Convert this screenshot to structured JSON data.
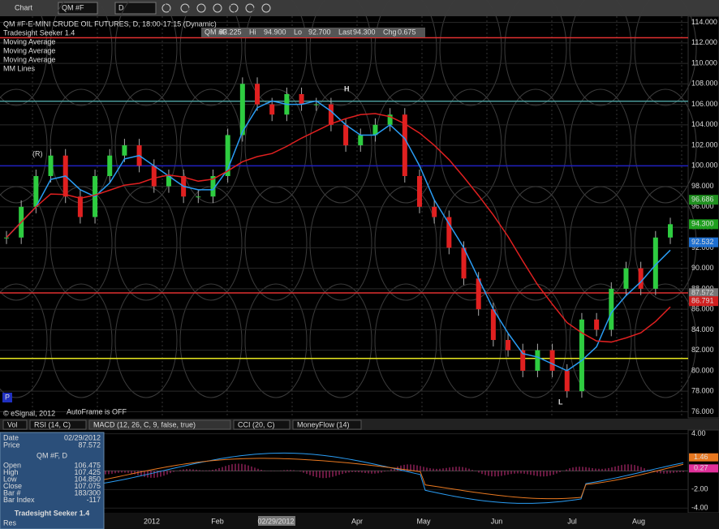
{
  "toolbar": {
    "title": "Chart",
    "symbol": "QM #F",
    "interval": "D"
  },
  "legend": {
    "header": "QM #F-E-MINI CRUDE OIL FUTURES, D, 18:00-17:15 (Dynamic)",
    "items": [
      "Tradesight Seeker 1.4",
      "Moving Average",
      "Moving Average",
      "Moving Average",
      "MM Lines"
    ]
  },
  "quote": [
    {
      "label": "QM #F",
      "value": "93.225"
    },
    {
      "label": "Hi",
      "value": "94.900"
    },
    {
      "label": "Lo",
      "value": "92.700"
    },
    {
      "label": "Last",
      "value": "94.300"
    },
    {
      "label": "Chg",
      "value": "0.675"
    }
  ],
  "annotations": {
    "high": "H",
    "low": "L",
    "reversal": "(R)",
    "autoframe": "AutoFrame is OFF",
    "copyright": "© eSignal, 2012",
    "p": "P"
  },
  "price_chart": {
    "ylim": [
      75.4,
      114.6
    ],
    "yticks": [
      {
        "value": 114,
        "label": "114.000"
      },
      {
        "value": 112,
        "label": "112.000"
      },
      {
        "value": 110,
        "label": "110.000"
      },
      {
        "value": 108,
        "label": "108.000"
      },
      {
        "value": 106,
        "label": "106.000"
      },
      {
        "value": 104,
        "label": "104.000"
      },
      {
        "value": 102,
        "label": "102.000"
      },
      {
        "value": 100,
        "label": "100.000"
      },
      {
        "value": 98,
        "label": "98.000"
      },
      {
        "value": 96,
        "label": "96.000"
      },
      {
        "value": 94,
        "label": "94.000"
      },
      {
        "value": 92,
        "label": "92.000"
      },
      {
        "value": 90,
        "label": "90.000"
      },
      {
        "value": 88,
        "label": "88.000"
      },
      {
        "value": 86,
        "label": "86.000"
      },
      {
        "value": 84,
        "label": "84.000"
      },
      {
        "value": 82,
        "label": "82.000"
      },
      {
        "value": 80,
        "label": "80.000"
      },
      {
        "value": 78,
        "label": "78.000"
      },
      {
        "value": 76,
        "label": "76.000"
      }
    ],
    "tags": [
      {
        "value": 96.686,
        "label": "96.686",
        "color": "#1f8f1f"
      },
      {
        "value": 94.3,
        "label": "94.300",
        "color": "#1fa01f"
      },
      {
        "value": 92.532,
        "label": "92.532",
        "color": "#1e6fd0"
      },
      {
        "value": 87.572,
        "label": "87.572",
        "color": "#777777"
      },
      {
        "value": 86.791,
        "label": "86.791",
        "color": "#d02020"
      }
    ],
    "levels": [
      {
        "value": 112.5,
        "color": "#e03030"
      },
      {
        "value": 106.3,
        "color": "#4a9a9a"
      },
      {
        "value": 100,
        "color": "#2020c0"
      },
      {
        "value": 87.6,
        "color": "#e03030"
      },
      {
        "value": 81.2,
        "color": "#e8e820"
      }
    ],
    "closes": [
      93,
      96,
      99,
      101,
      97,
      95,
      99,
      101,
      102,
      100,
      98,
      99,
      97,
      97,
      99,
      103,
      108,
      106,
      105,
      107,
      106,
      106,
      104,
      102,
      103,
      104,
      105,
      99,
      96,
      95,
      92,
      89,
      86,
      83,
      82,
      80,
      82,
      80,
      78,
      85,
      84,
      88,
      90,
      88,
      93,
      94.3
    ]
  },
  "tabs": [
    "Vol",
    "RSI (14, C)",
    "MACD (12, 26, C, 9, false, true)",
    "CCI (20, C)",
    "MoneyFlow (14)"
  ],
  "macd": {
    "ylim": [
      -4.5,
      4.4
    ],
    "yticks": [
      {
        "value": 4,
        "label": "4.00"
      },
      {
        "value": -2,
        "label": "-2.00"
      },
      {
        "value": -4,
        "label": "-4.00"
      }
    ],
    "tags": [
      {
        "value": 1.46,
        "label": "1.46",
        "color": "#e87820"
      },
      {
        "value": 0.27,
        "label": "0.27",
        "color": "#e0309a"
      }
    ]
  },
  "dates": [
    "2012",
    "Feb",
    "02/29/2012",
    "Apr",
    "May",
    "Jun",
    "Jul",
    "Aug"
  ],
  "data_window": {
    "top": [
      {
        "label": "Date",
        "value": "02/29/2012"
      },
      {
        "label": "Price",
        "value": "87.572"
      }
    ],
    "heading": "QM #F, D",
    "rows": [
      {
        "label": "Open",
        "value": "106.475"
      },
      {
        "label": "High",
        "value": "107.425"
      },
      {
        "label": "Low",
        "value": "104.850"
      },
      {
        "label": "Close",
        "value": "107.075"
      },
      {
        "label": "Bar #",
        "value": "183/300"
      },
      {
        "label": "Bar Index",
        "value": "-117"
      }
    ],
    "footer": "Tradesight Seeker 1.4",
    "res": "Res"
  }
}
